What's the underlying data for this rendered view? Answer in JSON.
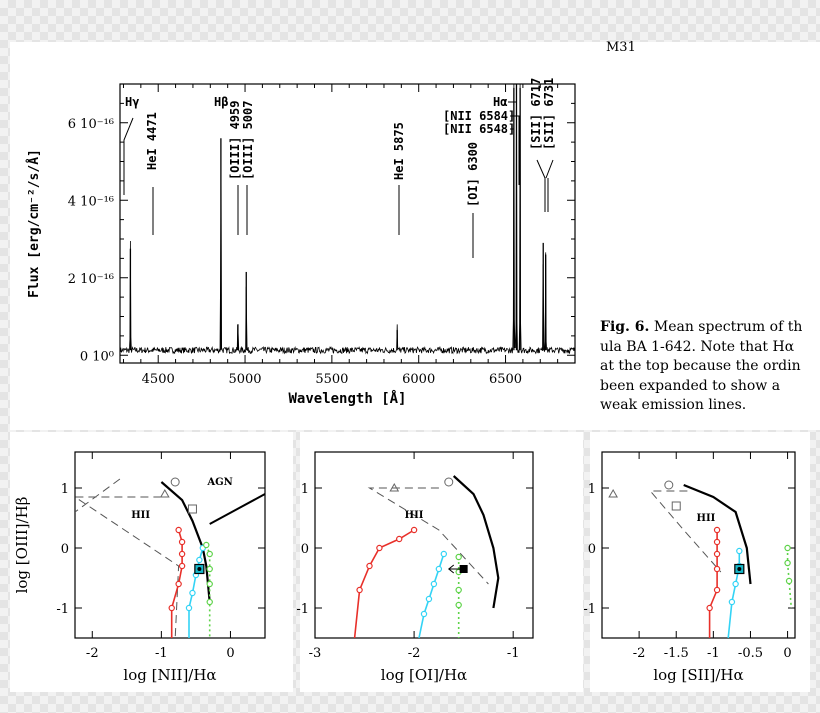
{
  "header_label": "M31",
  "caption": {
    "fig_label": "Fig. 6.",
    "lines": [
      "Mean spectrum of th",
      "ula BA 1-642. Note that Hα",
      "at the top because the ordin",
      "been expanded to show a",
      "weak emission lines."
    ]
  },
  "chart_data": [
    {
      "type": "line",
      "xlabel": "Wavelength [Å]",
      "ylabel": "Flux [erg/cm⁻²/s/Å]",
      "xlim": [
        4280,
        6900
      ],
      "ylim": [
        -2e-17,
        7e-16
      ],
      "xticks": [
        {
          "v": 4500,
          "label": "4500"
        },
        {
          "v": 5000,
          "label": "5000"
        },
        {
          "v": 5500,
          "label": "5500"
        },
        {
          "v": 6000,
          "label": "6000"
        },
        {
          "v": 6500,
          "label": "6500"
        }
      ],
      "yticks": [
        {
          "v": 0,
          "label": "0 10⁰"
        },
        {
          "v": 2e-16,
          "label": "2 10⁻¹⁶"
        },
        {
          "v": 4e-16,
          "label": "4 10⁻¹⁶"
        },
        {
          "v": 6e-16,
          "label": "6 10⁻¹⁶"
        }
      ],
      "continuum": 1.3e-17,
      "noise": 8e-18,
      "lines": [
        {
          "wl": 4340,
          "peak": 2.75e-16
        },
        {
          "wl": 4861,
          "peak": 5.6e-16
        },
        {
          "wl": 4959,
          "peak": 8e-17
        },
        {
          "wl": 5007,
          "peak": 2.15e-16
        },
        {
          "wl": 5876,
          "peak": 6.5e-17
        },
        {
          "wl": 6548,
          "peak": 6.9e-16
        },
        {
          "wl": 6563,
          "peak": 7e-16
        },
        {
          "wl": 6584,
          "peak": 6.9e-16
        },
        {
          "wl": 6717,
          "peak": 2.9e-16
        },
        {
          "wl": 6731,
          "peak": 2.6e-16
        }
      ],
      "line_labels": [
        {
          "text": "Hγ",
          "wl": 4340,
          "rot": 0
        },
        {
          "text": "HeI 4471",
          "wl": 4471,
          "rot": -90
        },
        {
          "text": "Hβ",
          "wl": 4861,
          "rot": 0
        },
        {
          "text": "[OIII] 4959",
          "wl": 4959,
          "rot": -90
        },
        {
          "text": "[OIII] 5007",
          "wl": 5007,
          "rot": -90
        },
        {
          "text": "HeI 5875",
          "wl": 5876,
          "rot": -90
        },
        {
          "text": "[OI] 6300",
          "wl": 6300,
          "rot": -90
        },
        {
          "text": "Hα",
          "wl": 6563,
          "rot": 0
        },
        {
          "text": "[NII 6584]",
          "wl": 6584,
          "rot": 0
        },
        {
          "text": "[NII 6548]",
          "wl": 6548,
          "rot": 0
        },
        {
          "text": "[SII] 6717",
          "wl": 6717,
          "rot": -90
        },
        {
          "text": "[SII] 6731",
          "wl": 6731,
          "rot": -90
        }
      ]
    },
    {
      "type": "scatter",
      "xlabel": "log [NII]/Hα",
      "ylabel": "log [OIII]/Hβ",
      "xlim": [
        -2.25,
        0.5
      ],
      "ylim": [
        -1.5,
        1.6
      ],
      "xticks": [
        -2,
        -1,
        0
      ],
      "yticks": [
        -1,
        0,
        1
      ],
      "labels": [
        {
          "text": "AGN",
          "x": -0.15,
          "y": 1.05
        },
        {
          "text": "HII",
          "x": -1.3,
          "y": 0.5
        }
      ],
      "black_curve": [
        [
          -1.0,
          1.1
        ],
        [
          -0.7,
          0.8
        ],
        [
          -0.55,
          0.45
        ],
        [
          -0.4,
          0.0
        ],
        [
          -0.35,
          -0.3
        ],
        [
          -0.3,
          -0.9
        ]
      ],
      "agn_line": [
        [
          -0.3,
          0.4
        ],
        [
          0.5,
          0.9
        ]
      ],
      "dashed_outer": [
        [
          -1.6,
          1.15
        ],
        [
          -2.25,
          0.6
        ]
      ],
      "dashed_region": [
        [
          -1.0,
          0.85
        ],
        [
          -2.25,
          0.85
        ],
        [
          -0.75,
          -0.3
        ],
        [
          -0.8,
          -1.5
        ]
      ],
      "red": [
        [
          -0.75,
          0.3
        ],
        [
          -0.7,
          0.1
        ],
        [
          -0.7,
          -0.1
        ],
        [
          -0.7,
          -0.3
        ],
        [
          -0.75,
          -0.6
        ],
        [
          -0.85,
          -1.0
        ],
        [
          -0.85,
          -1.5
        ]
      ],
      "cyan": [
        [
          -0.4,
          0.0
        ],
        [
          -0.45,
          -0.2
        ],
        [
          -0.5,
          -0.45
        ],
        [
          -0.55,
          -0.75
        ],
        [
          -0.6,
          -1.0
        ],
        [
          -0.6,
          -1.5
        ]
      ],
      "green": [
        [
          -0.35,
          0.05
        ],
        [
          -0.3,
          -0.1
        ],
        [
          -0.3,
          -0.35
        ],
        [
          -0.3,
          -0.6
        ],
        [
          -0.3,
          -0.9
        ],
        [
          -0.3,
          -1.5
        ]
      ],
      "triangle": [
        -0.95,
        0.9
      ],
      "circle": [
        -0.8,
        1.1
      ],
      "square": [
        -0.55,
        0.65
      ],
      "obs": [
        -0.45,
        -0.35
      ]
    },
    {
      "type": "scatter",
      "xlabel": "log [OI]/Hα",
      "ylabel": "",
      "xlim": [
        -3.0,
        -0.8
      ],
      "ylim": [
        -1.5,
        1.6
      ],
      "xticks": [
        -3,
        -2,
        -1
      ],
      "yticks": [
        -1,
        0,
        1
      ],
      "labels": [
        {
          "text": "HII",
          "x": -2.0,
          "y": 0.5
        }
      ],
      "black_curve": [
        [
          -1.6,
          1.2
        ],
        [
          -1.4,
          0.9
        ],
        [
          -1.3,
          0.55
        ],
        [
          -1.2,
          0.0
        ],
        [
          -1.15,
          -0.5
        ],
        [
          -1.2,
          -1.0
        ]
      ],
      "dashed_region": [
        [
          -1.75,
          1.0
        ],
        [
          -2.45,
          1.0
        ],
        [
          -1.75,
          0.3
        ],
        [
          -1.25,
          -0.6
        ]
      ],
      "red": [
        [
          -2.0,
          0.3
        ],
        [
          -2.15,
          0.15
        ],
        [
          -2.35,
          0.0
        ],
        [
          -2.45,
          -0.3
        ],
        [
          -2.55,
          -0.7
        ],
        [
          -2.6,
          -1.5
        ]
      ],
      "cyan": [
        [
          -1.7,
          -0.1
        ],
        [
          -1.75,
          -0.35
        ],
        [
          -1.8,
          -0.6
        ],
        [
          -1.85,
          -0.85
        ],
        [
          -1.9,
          -1.1
        ],
        [
          -1.95,
          -1.5
        ]
      ],
      "green": [
        [
          -1.55,
          -0.15
        ],
        [
          -1.55,
          -0.4
        ],
        [
          -1.55,
          -0.7
        ],
        [
          -1.55,
          -0.95
        ],
        [
          -1.55,
          -1.5
        ]
      ],
      "triangle": [
        -2.2,
        1.0
      ],
      "circle": [
        -1.65,
        1.1
      ],
      "square": null,
      "obs": [
        -1.5,
        -0.35
      ],
      "arrow": [
        [
          -1.5,
          -0.35
        ],
        [
          -1.65,
          -0.35
        ]
      ]
    },
    {
      "type": "scatter",
      "xlabel": "log [SII]/Hα",
      "ylabel": "",
      "xlim": [
        -2.5,
        0.1
      ],
      "ylim": [
        -1.5,
        1.6
      ],
      "xticks": [
        -2,
        -1.5,
        -1,
        -0.5,
        0
      ],
      "yticks": [
        -1,
        0,
        1
      ],
      "labels": [
        {
          "text": "HII",
          "x": -1.1,
          "y": 0.45
        }
      ],
      "black_curve": [
        [
          -1.4,
          1.05
        ],
        [
          -1.0,
          0.85
        ],
        [
          -0.7,
          0.6
        ],
        [
          -0.55,
          0.0
        ],
        [
          -0.5,
          -0.6
        ]
      ],
      "dashed_region": [
        [
          -1.35,
          0.95
        ],
        [
          -1.85,
          0.95
        ],
        [
          -1.4,
          0.3
        ],
        [
          -0.9,
          -0.4
        ]
      ],
      "red": [
        [
          -0.95,
          0.3
        ],
        [
          -0.95,
          0.1
        ],
        [
          -0.95,
          -0.1
        ],
        [
          -0.95,
          -0.35
        ],
        [
          -0.95,
          -0.7
        ],
        [
          -1.05,
          -1.0
        ],
        [
          -1.05,
          -1.5
        ]
      ],
      "cyan": [
        [
          -0.65,
          -0.05
        ],
        [
          -0.65,
          -0.3
        ],
        [
          -0.7,
          -0.6
        ],
        [
          -0.75,
          -0.9
        ],
        [
          -0.8,
          -1.5
        ]
      ],
      "green": [
        [
          0.0,
          0.0
        ],
        [
          0.0,
          -0.25
        ],
        [
          0.02,
          -0.55
        ],
        [
          0.05,
          -1.0
        ]
      ],
      "triangle": [
        -2.35,
        0.9
      ],
      "circle": [
        -1.6,
        1.05
      ],
      "square": [
        -1.5,
        0.7
      ],
      "obs": [
        -0.65,
        -0.35
      ]
    }
  ]
}
